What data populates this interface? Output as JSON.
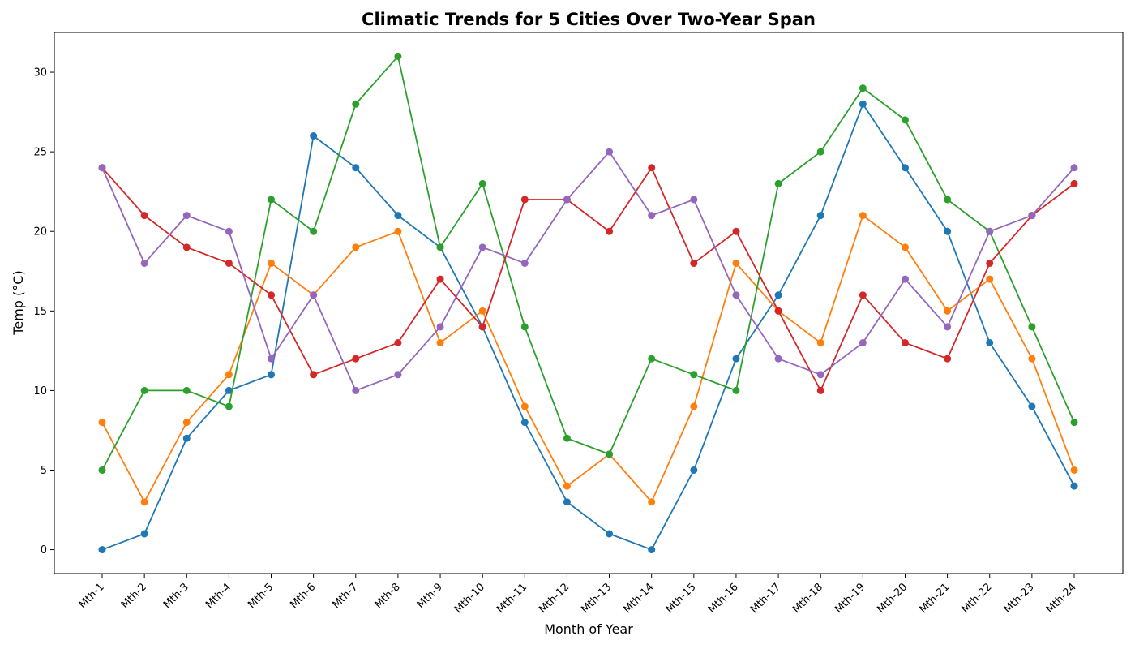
{
  "chart_data": {
    "type": "line",
    "title": "Climatic Trends for 5 Cities Over Two-Year Span",
    "xlabel": "Month of Year",
    "ylabel": "Temp (°C)",
    "categories": [
      "Mth-1",
      "Mth-2",
      "Mth-3",
      "Mth-4",
      "Mth-5",
      "Mth-6",
      "Mth-7",
      "Mth-8",
      "Mth-9",
      "Mth-10",
      "Mth-11",
      "Mth-12",
      "Mth-13",
      "Mth-14",
      "Mth-15",
      "Mth-16",
      "Mth-17",
      "Mth-18",
      "Mth-19",
      "Mth-20",
      "Mth-21",
      "Mth-22",
      "Mth-23",
      "Mth-24"
    ],
    "ylim": [
      -1.5,
      32.5
    ],
    "yticks": [
      0,
      5,
      10,
      15,
      20,
      25,
      30
    ],
    "grid": false,
    "legend": "none",
    "series": [
      {
        "color": "#1f77b4",
        "values": [
          0,
          1,
          7,
          10,
          11,
          26,
          24,
          21,
          19,
          14,
          8,
          3,
          1,
          0,
          5,
          12,
          16,
          21,
          28,
          24,
          20,
          13,
          9,
          4
        ]
      },
      {
        "color": "#ff7f0e",
        "values": [
          8,
          3,
          8,
          11,
          18,
          16,
          19,
          20,
          13,
          15,
          9,
          4,
          6,
          3,
          9,
          18,
          15,
          13,
          21,
          19,
          15,
          17,
          12,
          5
        ]
      },
      {
        "color": "#2ca02c",
        "values": [
          5,
          10,
          10,
          9,
          22,
          20,
          28,
          31,
          19,
          23,
          14,
          7,
          6,
          12,
          11,
          10,
          23,
          25,
          29,
          27,
          22,
          20,
          14,
          8
        ]
      },
      {
        "color": "#d62728",
        "values": [
          24,
          21,
          19,
          18,
          16,
          11,
          12,
          13,
          17,
          14,
          22,
          22,
          20,
          24,
          18,
          20,
          15,
          10,
          16,
          13,
          12,
          18,
          21,
          23
        ]
      },
      {
        "color": "#9467bd",
        "values": [
          24,
          18,
          21,
          20,
          12,
          16,
          10,
          11,
          14,
          19,
          18,
          22,
          25,
          21,
          22,
          16,
          12,
          11,
          13,
          17,
          14,
          20,
          21,
          24
        ]
      }
    ]
  }
}
